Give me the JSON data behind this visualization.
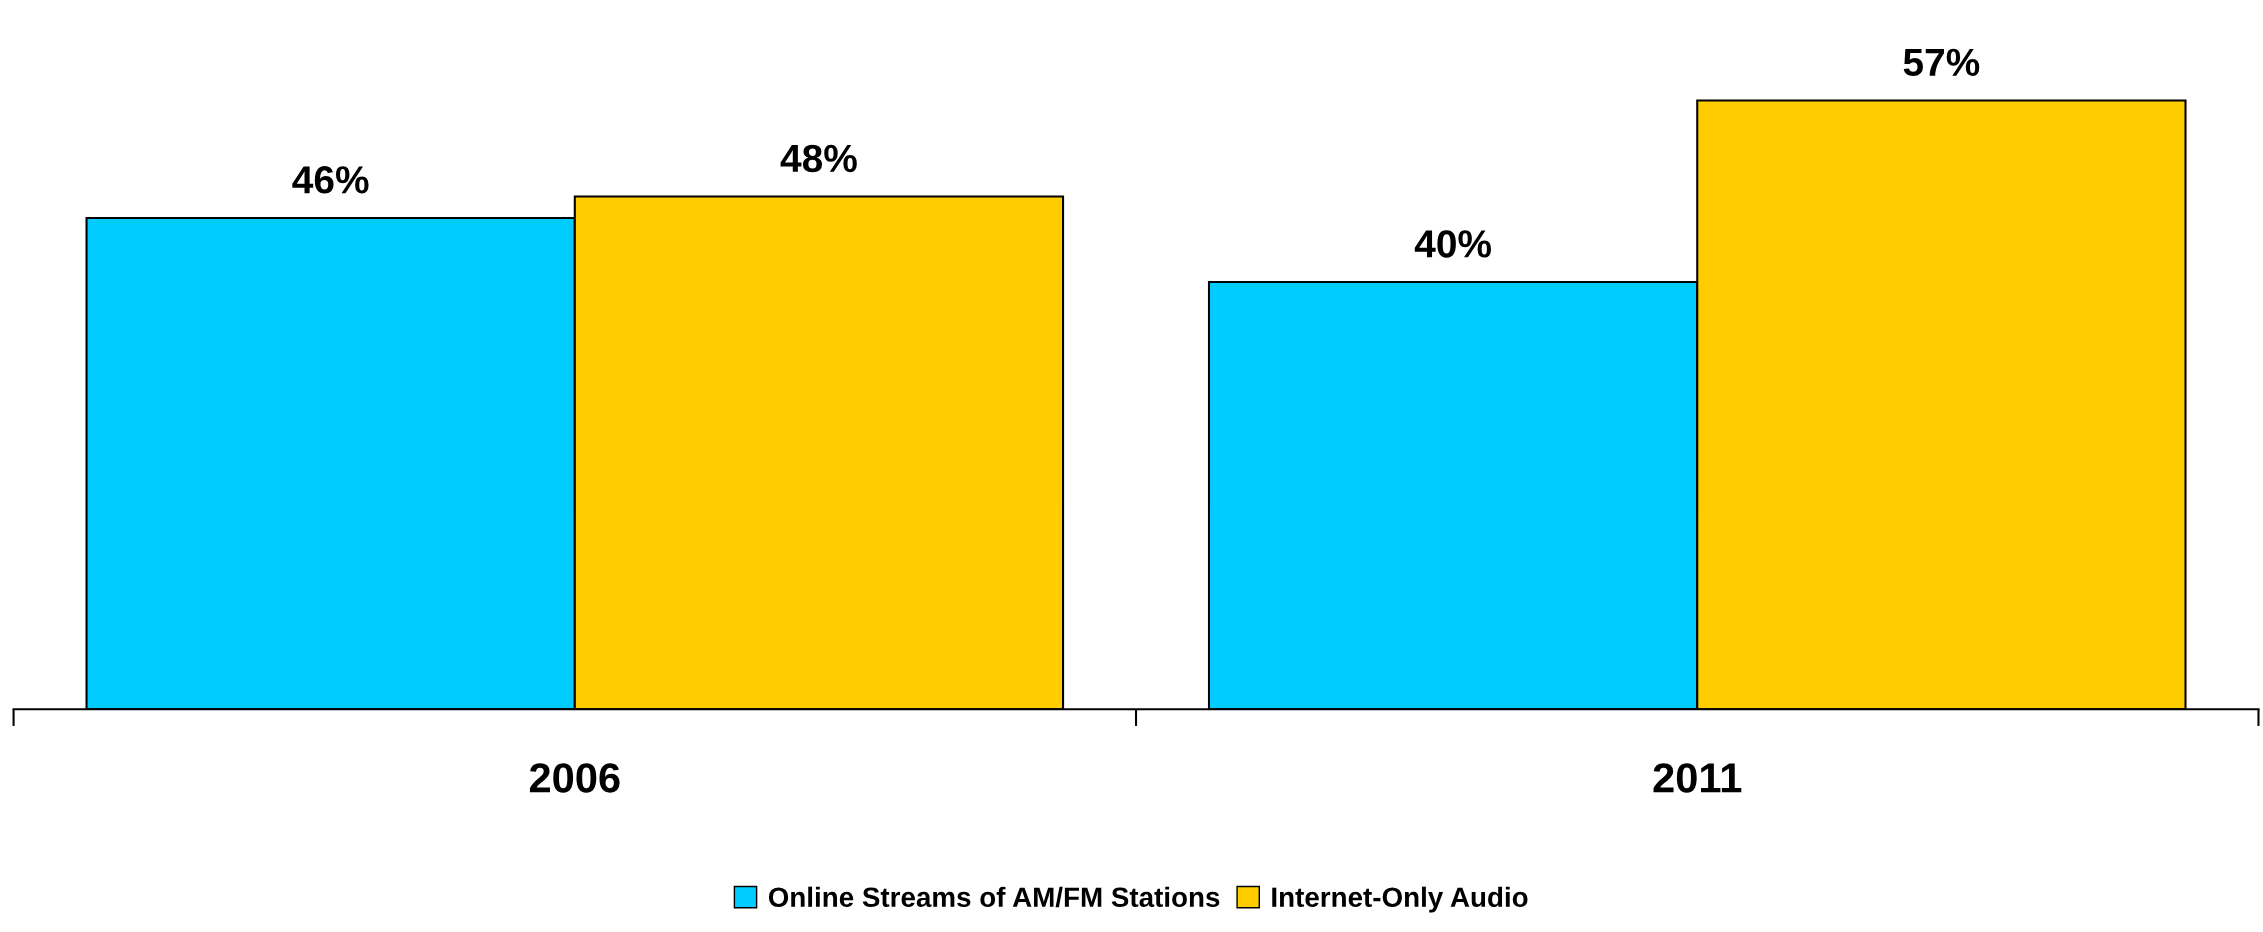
{
  "chart_data": {
    "type": "bar",
    "categories": [
      "2006",
      "2011"
    ],
    "series": [
      {
        "name": "Online Streams of AM/FM Stations",
        "color": "#00ccff",
        "values": [
          46,
          40
        ],
        "value_labels": [
          "46%",
          "40%"
        ]
      },
      {
        "name": "Internet-Only Audio",
        "color": "#ffcc00",
        "values": [
          48,
          57
        ],
        "value_labels": [
          "48%",
          "57%"
        ]
      }
    ],
    "grid": false,
    "legend": "bottom",
    "tick_labels": "x"
  }
}
